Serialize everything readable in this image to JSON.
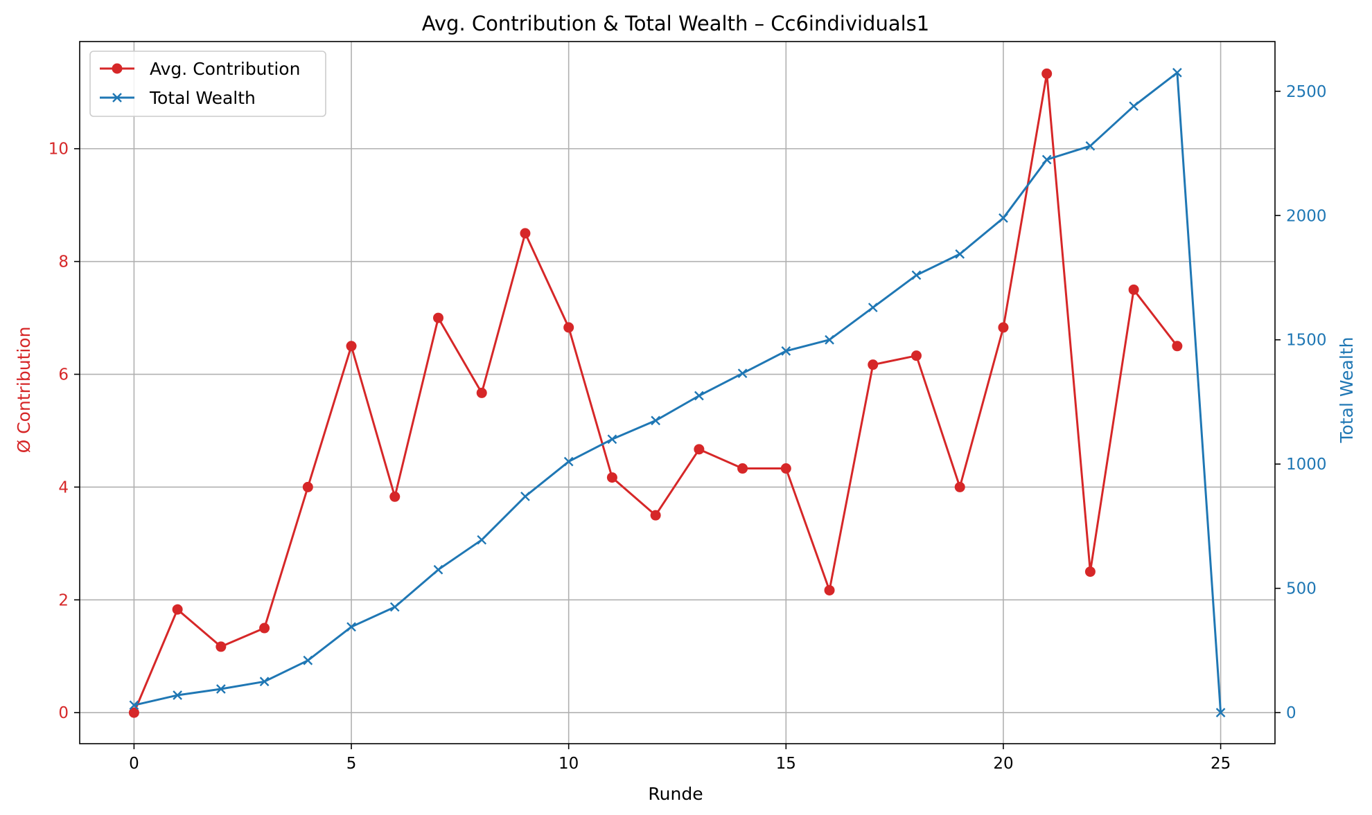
{
  "chart_data": {
    "type": "line",
    "title": "Avg. Contribution & Total Wealth – Cc6individuals1",
    "xlabel": "Runde",
    "ylabel_left": "Ø Contribution",
    "ylabel_right": "Total Wealth",
    "xlim": [
      -1.25,
      26.25
    ],
    "ylim_left": [
      -0.55,
      11.9
    ],
    "ylim_right": [
      -125,
      2700
    ],
    "x_ticks": [
      0,
      5,
      10,
      15,
      20,
      25
    ],
    "y_ticks_left": [
      0,
      2,
      4,
      6,
      8,
      10
    ],
    "y_ticks_right": [
      0,
      500,
      1000,
      1500,
      2000,
      2500
    ],
    "grid": true,
    "legend_position": "top-left",
    "colors": {
      "left": "#d62728",
      "right": "#1f77b4"
    },
    "series": [
      {
        "name": "Avg. Contribution",
        "axis": "left",
        "marker": "circle",
        "color": "#d62728",
        "x": [
          0,
          1,
          2,
          3,
          4,
          5,
          6,
          7,
          8,
          9,
          10,
          11,
          12,
          13,
          14,
          15,
          16,
          17,
          18,
          19,
          20,
          21,
          22,
          23,
          24
        ],
        "values": [
          0,
          1.83,
          1.17,
          1.5,
          4.0,
          6.5,
          3.83,
          7.0,
          5.67,
          8.5,
          6.83,
          4.17,
          3.5,
          4.67,
          4.33,
          4.33,
          2.17,
          6.17,
          6.33,
          4.0,
          6.83,
          11.33,
          2.5,
          7.5,
          6.5
        ]
      },
      {
        "name": "Total Wealth",
        "axis": "right",
        "marker": "x",
        "color": "#1f77b4",
        "x": [
          0,
          1,
          2,
          3,
          4,
          5,
          6,
          7,
          8,
          9,
          10,
          11,
          12,
          13,
          14,
          15,
          16,
          17,
          18,
          19,
          20,
          21,
          22,
          23,
          24,
          25
        ],
        "values": [
          30,
          70,
          95,
          125,
          210,
          345,
          425,
          575,
          695,
          870,
          1010,
          1100,
          1175,
          1275,
          1365,
          1455,
          1500,
          1630,
          1760,
          1845,
          1990,
          2225,
          2280,
          2440,
          2575,
          0
        ]
      }
    ]
  }
}
